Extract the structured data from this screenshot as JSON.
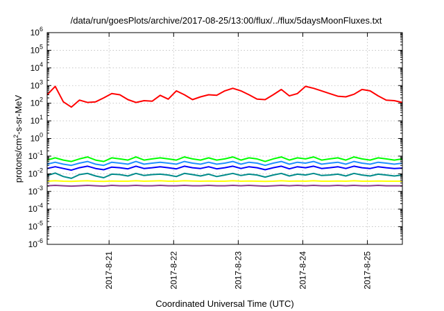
{
  "chart_data": {
    "type": "line",
    "title": "/data/run/goesPlots/archive/2017-08-25/13:00/flux/../flux/5daysMoonFluxes.txt",
    "xlabel": "Coordinated Universal Time (UTC)",
    "ylabel_parts": {
      "a": "protons/cm",
      "sup": "2",
      "b": "-s-sr-MeV"
    },
    "yscale": "log",
    "ylim": [
      1e-06,
      1000000.0
    ],
    "xlim": [
      "2017-08-20 01:00",
      "2017-08-25 13:00"
    ],
    "grid": true,
    "legend": "none",
    "y_ticks": [
      {
        "value": 1e-06,
        "base": "10",
        "exp": "-6"
      },
      {
        "value": 1e-05,
        "base": "10",
        "exp": "-5"
      },
      {
        "value": 0.0001,
        "base": "10",
        "exp": "-4"
      },
      {
        "value": 0.001,
        "base": "10",
        "exp": "-3"
      },
      {
        "value": 0.01,
        "base": "10",
        "exp": "-2"
      },
      {
        "value": 0.1,
        "base": "10",
        "exp": "-1"
      },
      {
        "value": 1.0,
        "base": "10",
        "exp": "0"
      },
      {
        "value": 10.0,
        "base": "10",
        "exp": "1"
      },
      {
        "value": 100.0,
        "base": "10",
        "exp": "2"
      },
      {
        "value": 1000.0,
        "base": "10",
        "exp": "3"
      },
      {
        "value": 10000.0,
        "base": "10",
        "exp": "4"
      },
      {
        "value": 100000.0,
        "base": "10",
        "exp": "5"
      },
      {
        "value": 1000000.0,
        "base": "10",
        "exp": "6"
      }
    ],
    "x_ticks": [
      {
        "value": "2017-08-21 00:00",
        "label": "2017-8-21"
      },
      {
        "value": "2017-08-22 00:00",
        "label": "2017-8-22"
      },
      {
        "value": "2017-08-23 00:00",
        "label": "2017-8-23"
      },
      {
        "value": "2017-08-24 00:00",
        "label": "2017-8-24"
      },
      {
        "value": "2017-08-25 00:00",
        "label": "2017-8-25"
      }
    ],
    "x": [
      "2017-08-20 01:00",
      "2017-08-20 04:00",
      "2017-08-20 07:00",
      "2017-08-20 10:00",
      "2017-08-20 13:00",
      "2017-08-20 16:00",
      "2017-08-20 19:00",
      "2017-08-20 22:00",
      "2017-08-21 01:00",
      "2017-08-21 04:00",
      "2017-08-21 07:00",
      "2017-08-21 10:00",
      "2017-08-21 13:00",
      "2017-08-21 16:00",
      "2017-08-21 19:00",
      "2017-08-21 22:00",
      "2017-08-22 01:00",
      "2017-08-22 04:00",
      "2017-08-22 07:00",
      "2017-08-22 10:00",
      "2017-08-22 13:00",
      "2017-08-22 16:00",
      "2017-08-22 19:00",
      "2017-08-22 22:00",
      "2017-08-23 01:00",
      "2017-08-23 04:00",
      "2017-08-23 07:00",
      "2017-08-23 10:00",
      "2017-08-23 13:00",
      "2017-08-23 16:00",
      "2017-08-23 19:00",
      "2017-08-23 22:00",
      "2017-08-24 01:00",
      "2017-08-24 04:00",
      "2017-08-24 07:00",
      "2017-08-24 10:00",
      "2017-08-24 13:00",
      "2017-08-24 16:00",
      "2017-08-24 19:00",
      "2017-08-24 22:00",
      "2017-08-25 01:00",
      "2017-08-25 04:00",
      "2017-08-25 07:00",
      "2017-08-25 10:00",
      "2017-08-25 13:00"
    ],
    "series": [
      {
        "color": "#ff0000",
        "values": [
          300,
          900,
          120,
          60,
          150,
          110,
          120,
          200,
          350,
          300,
          160,
          110,
          140,
          130,
          280,
          170,
          500,
          300,
          160,
          230,
          300,
          280,
          500,
          700,
          500,
          300,
          170,
          160,
          300,
          600,
          260,
          350,
          900,
          700,
          500,
          350,
          250,
          230,
          320,
          600,
          500,
          260,
          150,
          140,
          110
        ]
      },
      {
        "color": "#00ff00",
        "values": [
          0.06,
          0.08,
          0.06,
          0.05,
          0.07,
          0.09,
          0.06,
          0.05,
          0.08,
          0.07,
          0.06,
          0.09,
          0.06,
          0.07,
          0.08,
          0.07,
          0.06,
          0.09,
          0.07,
          0.06,
          0.08,
          0.06,
          0.07,
          0.09,
          0.06,
          0.08,
          0.07,
          0.05,
          0.07,
          0.09,
          0.06,
          0.08,
          0.07,
          0.09,
          0.06,
          0.07,
          0.08,
          0.06,
          0.09,
          0.07,
          0.06,
          0.08,
          0.07,
          0.06,
          0.07
        ]
      },
      {
        "color": "#1e90ff",
        "values": [
          0.035,
          0.045,
          0.035,
          0.03,
          0.04,
          0.05,
          0.035,
          0.03,
          0.045,
          0.04,
          0.035,
          0.05,
          0.035,
          0.04,
          0.045,
          0.04,
          0.035,
          0.05,
          0.04,
          0.035,
          0.045,
          0.035,
          0.04,
          0.05,
          0.035,
          0.045,
          0.04,
          0.03,
          0.04,
          0.05,
          0.035,
          0.045,
          0.04,
          0.05,
          0.035,
          0.04,
          0.045,
          0.035,
          0.05,
          0.04,
          0.035,
          0.045,
          0.04,
          0.035,
          0.04
        ]
      },
      {
        "color": "#0000ff",
        "values": [
          0.02,
          0.025,
          0.02,
          0.016,
          0.022,
          0.027,
          0.02,
          0.017,
          0.024,
          0.022,
          0.019,
          0.027,
          0.02,
          0.022,
          0.025,
          0.022,
          0.019,
          0.027,
          0.022,
          0.02,
          0.025,
          0.019,
          0.022,
          0.027,
          0.02,
          0.025,
          0.022,
          0.017,
          0.022,
          0.027,
          0.019,
          0.025,
          0.022,
          0.027,
          0.02,
          0.022,
          0.025,
          0.02,
          0.027,
          0.022,
          0.02,
          0.025,
          0.022,
          0.02,
          0.021
        ]
      },
      {
        "color": "#008b8b",
        "values": [
          0.008,
          0.011,
          0.007,
          0.0055,
          0.009,
          0.0105,
          0.0075,
          0.006,
          0.0095,
          0.009,
          0.0075,
          0.0105,
          0.008,
          0.009,
          0.0095,
          0.0085,
          0.007,
          0.0105,
          0.009,
          0.0075,
          0.0095,
          0.007,
          0.0085,
          0.0105,
          0.008,
          0.0095,
          0.0085,
          0.0065,
          0.0085,
          0.0105,
          0.0075,
          0.0095,
          0.0085,
          0.0105,
          0.008,
          0.0085,
          0.0095,
          0.0075,
          0.0105,
          0.0085,
          0.0075,
          0.0095,
          0.0085,
          0.0075,
          0.0085
        ]
      },
      {
        "color": "#ffff00",
        "values": [
          0.0038,
          0.004,
          0.0038,
          0.0037,
          0.0039,
          0.004,
          0.0038,
          0.0037,
          0.0039,
          0.0038,
          0.0038,
          0.004,
          0.0038,
          0.0039,
          0.004,
          0.0038,
          0.0038,
          0.004,
          0.0039,
          0.0038,
          0.0039,
          0.0038,
          0.0038,
          0.004,
          0.0038,
          0.0039,
          0.0038,
          0.0037,
          0.0038,
          0.004,
          0.0038,
          0.0039,
          0.0038,
          0.004,
          0.0038,
          0.0038,
          0.0039,
          0.0038,
          0.004,
          0.0038,
          0.0038,
          0.0039,
          0.0038,
          0.0038,
          0.0038
        ]
      },
      {
        "color": "#8b3a8b",
        "values": [
          0.0021,
          0.0022,
          0.0021,
          0.002,
          0.0021,
          0.0022,
          0.0021,
          0.002,
          0.0022,
          0.0021,
          0.0021,
          0.0022,
          0.0021,
          0.0021,
          0.0022,
          0.0021,
          0.0021,
          0.0022,
          0.0021,
          0.0021,
          0.0022,
          0.0021,
          0.0021,
          0.0022,
          0.0021,
          0.0022,
          0.0021,
          0.002,
          0.0021,
          0.0022,
          0.0021,
          0.0022,
          0.0021,
          0.0022,
          0.0021,
          0.0021,
          0.0022,
          0.0021,
          0.0022,
          0.0021,
          0.0021,
          0.0022,
          0.0021,
          0.0021,
          0.0021
        ]
      }
    ]
  }
}
